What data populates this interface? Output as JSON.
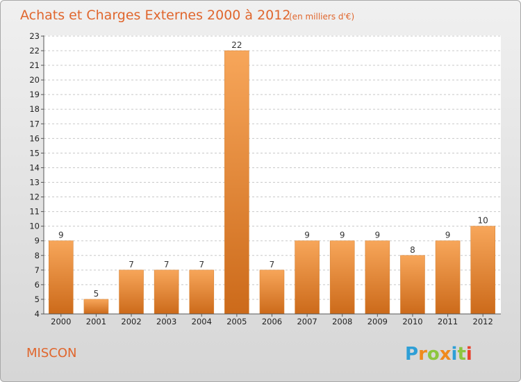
{
  "header": {
    "title": "Achats et Charges Externes 2000 à 2012",
    "unit": "(en milliers d'€)"
  },
  "footer": {
    "place": "MISCON",
    "logo": "Proxiti"
  },
  "colors": {
    "title": "#e0662d",
    "bar_top": "#f7a65a",
    "bar_bottom": "#cc6a1a",
    "plot_bg": "#ffffff",
    "grid": "#c8c8c8",
    "logo_p": "#2e9fd6",
    "logo_r": "#f08a1c",
    "logo_o": "#8cc63f",
    "logo_x": "#f08a1c",
    "logo_i": "#2e9fd6",
    "logo_t": "#8cc63f",
    "logo_i2": "#e8432d"
  },
  "chart_data": {
    "type": "bar",
    "title": "Achats et Charges Externes 2000 à 2012",
    "subtitle": "(en milliers d'€)",
    "xlabel": "",
    "ylabel": "",
    "categories": [
      "2000",
      "2001",
      "2002",
      "2003",
      "2004",
      "2005",
      "2006",
      "2007",
      "2008",
      "2009",
      "2010",
      "2011",
      "2012"
    ],
    "values": [
      9,
      5,
      7,
      7,
      7,
      22,
      7,
      9,
      9,
      9,
      8,
      9,
      10
    ],
    "data_labels": [
      "9",
      "5",
      "7",
      "7",
      "7",
      "22",
      "7",
      "9",
      "9",
      "9",
      "8",
      "9",
      "10"
    ],
    "ylim": [
      4,
      23
    ],
    "yticks": [
      4,
      5,
      6,
      7,
      8,
      9,
      10,
      11,
      12,
      13,
      14,
      15,
      16,
      17,
      18,
      19,
      20,
      21,
      22,
      23
    ],
    "ytick_labels": [
      "4",
      "5",
      "6",
      "7",
      "8",
      "9",
      "10",
      "11",
      "12",
      "13",
      "14",
      "15",
      "16",
      "17",
      "18",
      "19",
      "20",
      "21",
      "22",
      "23"
    ],
    "grid": true,
    "legend": "none"
  }
}
